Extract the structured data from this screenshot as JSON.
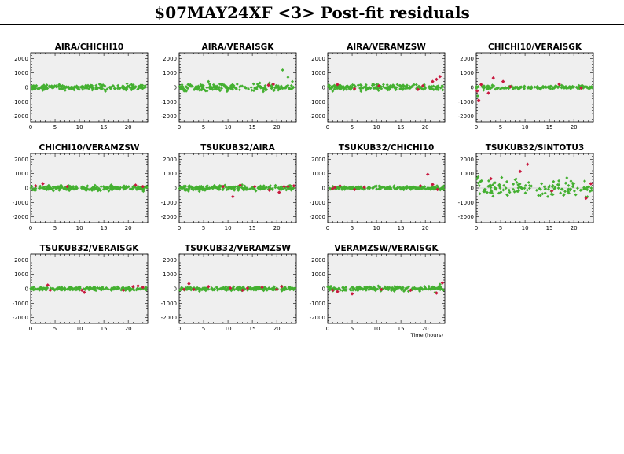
{
  "header": {
    "title": "$07MAY24XF <3> Post-fit residuals"
  },
  "x_axis_label": "Time (hours)",
  "chart_data": [
    {
      "type": "scatter",
      "title": "AIRA/CHICHI10",
      "xlim": [
        0,
        24
      ],
      "ylim": [
        -2400,
        2400
      ],
      "xticks": [
        0,
        5,
        10,
        15,
        20
      ],
      "yticks": [
        -2000,
        -1000,
        0,
        1000,
        2000
      ],
      "spread": 130,
      "n_good": 190,
      "flagged": []
    },
    {
      "type": "scatter",
      "title": "AIRA/VERAISGK",
      "xlim": [
        0,
        24
      ],
      "ylim": [
        -2400,
        2400
      ],
      "xticks": [
        0,
        5,
        10,
        15,
        20
      ],
      "yticks": [
        -2000,
        -1000,
        0,
        1000,
        2000
      ],
      "spread": 180,
      "n_good": 170,
      "outliers": [
        [
          6,
          400
        ],
        [
          21.2,
          1200
        ],
        [
          22.3,
          700
        ],
        [
          23.2,
          400
        ],
        [
          19.5,
          -200
        ]
      ],
      "flagged": [
        [
          18.3,
          150
        ],
        [
          19.3,
          220
        ]
      ]
    },
    {
      "type": "scatter",
      "title": "AIRA/VERAMZSW",
      "xlim": [
        0,
        24
      ],
      "ylim": [
        -2400,
        2400
      ],
      "xticks": [
        0,
        5,
        10,
        15,
        20
      ],
      "yticks": [
        -2000,
        -1000,
        0,
        1000,
        2000
      ],
      "spread": 150,
      "n_good": 190,
      "flagged": [
        [
          2,
          200
        ],
        [
          5.5,
          -100
        ],
        [
          10.5,
          100
        ],
        [
          18.5,
          -150
        ],
        [
          21.5,
          400
        ],
        [
          22.3,
          550
        ],
        [
          23,
          750
        ],
        [
          19.5,
          100
        ]
      ]
    },
    {
      "type": "scatter",
      "title": "CHICHI10/VERAISGK",
      "xlim": [
        0,
        24
      ],
      "ylim": [
        -2400,
        2400
      ],
      "xticks": [
        0,
        5,
        10,
        15,
        20
      ],
      "yticks": [
        -2000,
        -1000,
        0,
        1000,
        2000
      ],
      "spread": 90,
      "n_good": 160,
      "outliers": [
        [
          0.3,
          -600
        ],
        [
          1.5,
          -200
        ]
      ],
      "flagged": [
        [
          0.2,
          -250
        ],
        [
          0.5,
          -900
        ],
        [
          1,
          200
        ],
        [
          2.5,
          -400
        ],
        [
          3.5,
          650
        ],
        [
          5.5,
          400
        ],
        [
          7,
          50
        ],
        [
          17,
          220
        ],
        [
          21.5,
          -50
        ]
      ]
    },
    {
      "type": "scatter",
      "title": "CHICHI10/VERAMZSW",
      "xlim": [
        0,
        24
      ],
      "ylim": [
        -2400,
        2400
      ],
      "xticks": [
        0,
        5,
        10,
        15,
        20
      ],
      "yticks": [
        -2000,
        -1000,
        0,
        1000,
        2000
      ],
      "spread": 120,
      "n_good": 200,
      "flagged": [
        [
          1,
          150
        ],
        [
          2.5,
          300
        ],
        [
          7.5,
          100
        ],
        [
          21.5,
          200
        ],
        [
          23,
          100
        ]
      ]
    },
    {
      "type": "scatter",
      "title": "TSUKUB32/AIRA",
      "xlim": [
        0,
        24
      ],
      "ylim": [
        -2400,
        2400
      ],
      "xticks": [
        0,
        5,
        10,
        15,
        20
      ],
      "yticks": [
        -2000,
        -1000,
        0,
        1000,
        2000
      ],
      "spread": 110,
      "n_good": 190,
      "flagged": [
        [
          11,
          -600
        ],
        [
          12.5,
          200
        ],
        [
          15.5,
          100
        ],
        [
          18.5,
          -150
        ],
        [
          20.5,
          -300
        ],
        [
          21.5,
          100
        ],
        [
          22.3,
          100
        ],
        [
          23.5,
          150
        ],
        [
          9,
          100
        ]
      ]
    },
    {
      "type": "scatter",
      "title": "TSUKUB32/CHICHI10",
      "xlim": [
        0,
        24
      ],
      "ylim": [
        -2400,
        2400
      ],
      "xticks": [
        0,
        5,
        10,
        15,
        20
      ],
      "yticks": [
        -2000,
        -1000,
        0,
        1000,
        2000
      ],
      "spread": 80,
      "n_good": 200,
      "flagged": [
        [
          1.5,
          50
        ],
        [
          2.5,
          150
        ],
        [
          5.5,
          -100
        ],
        [
          7.5,
          50
        ],
        [
          19,
          150
        ],
        [
          20.5,
          950
        ],
        [
          21.5,
          250
        ],
        [
          22.5,
          -100
        ],
        [
          1,
          -50
        ]
      ]
    },
    {
      "type": "scatter",
      "title": "TSUKUB32/SINTOTU3",
      "xlim": [
        0,
        24
      ],
      "ylim": [
        -2400,
        2400
      ],
      "xticks": [
        0,
        5,
        10,
        15,
        20
      ],
      "yticks": [
        -2000,
        -1000,
        0,
        1000,
        2000
      ],
      "spread": 450,
      "n_good": 140,
      "flagged": [
        [
          10.5,
          1650
        ],
        [
          9,
          1150
        ],
        [
          3,
          650
        ],
        [
          22.5,
          -700
        ],
        [
          23.5,
          300
        ],
        [
          15.5,
          -200
        ]
      ]
    },
    {
      "type": "scatter",
      "title": "TSUKUB32/VERAISGK",
      "xlim": [
        0,
        24
      ],
      "ylim": [
        -2400,
        2400
      ],
      "xticks": [
        0,
        5,
        10,
        15,
        20
      ],
      "yticks": [
        -2000,
        -1000,
        0,
        1000,
        2000
      ],
      "spread": 80,
      "n_good": 180,
      "flagged": [
        [
          3.5,
          250
        ],
        [
          4,
          -100
        ],
        [
          10.5,
          -100
        ],
        [
          11,
          -250
        ],
        [
          19,
          -100
        ],
        [
          21,
          150
        ],
        [
          22,
          200
        ],
        [
          23,
          100
        ]
      ]
    },
    {
      "type": "scatter",
      "title": "TSUKUB32/VERAMZSW",
      "xlim": [
        0,
        24
      ],
      "ylim": [
        -2400,
        2400
      ],
      "xticks": [
        0,
        5,
        10,
        15,
        20
      ],
      "yticks": [
        -2000,
        -1000,
        0,
        1000,
        2000
      ],
      "spread": 90,
      "n_good": 190,
      "flagged": [
        [
          2,
          350
        ],
        [
          3,
          -50
        ],
        [
          6,
          150
        ],
        [
          10.5,
          50
        ],
        [
          13,
          -100
        ],
        [
          14,
          50
        ],
        [
          17,
          100
        ],
        [
          20,
          -50
        ],
        [
          21,
          150
        ],
        [
          1,
          -50
        ]
      ]
    },
    {
      "type": "scatter",
      "title": "VERAMZSW/VERAISGK",
      "xlim": [
        0,
        24
      ],
      "ylim": [
        -2400,
        2400
      ],
      "xticks": [
        0,
        5,
        10,
        15,
        20
      ],
      "yticks": [
        -2000,
        -1000,
        0,
        1000,
        2000
      ],
      "spread": 110,
      "n_good": 180,
      "outliers": [
        [
          23,
          300
        ],
        [
          22,
          -250
        ]
      ],
      "flagged": [
        [
          1,
          -100
        ],
        [
          2,
          -200
        ],
        [
          5,
          -350
        ],
        [
          11,
          -50
        ],
        [
          17,
          -100
        ],
        [
          22.3,
          -300
        ],
        [
          23.5,
          400
        ]
      ]
    }
  ],
  "colors": {
    "good": "#44b031",
    "flagged": "#c8193f",
    "panel_bg": "#efefef"
  }
}
